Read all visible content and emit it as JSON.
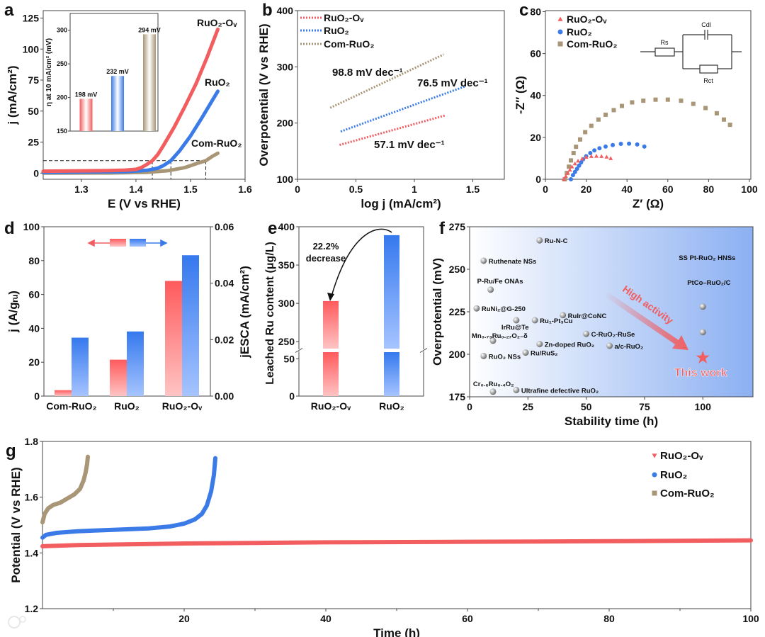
{
  "colors": {
    "red": "#f25d60",
    "blue": "#3b7be8",
    "tan": "#a89677",
    "gray": "#9a9a9a"
  },
  "watermark": "大数跨境",
  "chart_data": [
    {
      "panel": "a",
      "type": "line",
      "xlabel": "E (V vs RHE)",
      "ylabel": "j (mA/cm²)",
      "xlim": [
        1.23,
        1.6
      ],
      "ylim": [
        -5,
        131
      ],
      "xticks": [
        "1.3",
        "1.4",
        "1.5",
        "1.6"
      ],
      "yticks": [
        "0",
        "25",
        "50",
        "75",
        "100",
        "125"
      ],
      "series": [
        {
          "name": "RuO₂-Oᵥ",
          "color": "#f25d60",
          "x": [
            1.23,
            1.3,
            1.35,
            1.38,
            1.4,
            1.41,
            1.42,
            1.43,
            1.44,
            1.45,
            1.47,
            1.49,
            1.51,
            1.53,
            1.55
          ],
          "y": [
            1.5,
            1.8,
            2,
            2.4,
            3,
            4.5,
            7,
            10,
            15,
            22,
            37,
            54,
            72,
            93,
            116
          ]
        },
        {
          "name": "RuO₂",
          "color": "#3b7be8",
          "x": [
            1.23,
            1.3,
            1.38,
            1.42,
            1.44,
            1.45,
            1.464,
            1.48,
            1.5,
            1.52,
            1.55
          ],
          "y": [
            0.5,
            0.8,
            1.2,
            2.2,
            4,
            6,
            10,
            18,
            30,
            44,
            66
          ]
        },
        {
          "name": "Com-RuO₂",
          "color": "#a89677",
          "x": [
            1.23,
            1.35,
            1.42,
            1.46,
            1.49,
            1.51,
            1.528,
            1.54,
            1.55
          ],
          "y": [
            0,
            0.1,
            0.6,
            2,
            4.5,
            7.5,
            10,
            13.5,
            16
          ]
        }
      ],
      "reference": {
        "j": 10,
        "E": [
          1.43,
          1.464,
          1.528
        ]
      },
      "inset": {
        "type": "bar",
        "ylabel": "η at 10 mA/cm² (mV)",
        "ylim": [
          150,
          325
        ],
        "yticks": [
          "150",
          "200",
          "250",
          "300"
        ],
        "categories": [
          "RuO₂-Oᵥ",
          "RuO₂",
          "Com-RuO₂"
        ],
        "values": [
          198,
          232,
          294
        ],
        "labels": [
          "198 mV",
          "232 mV",
          "294 mV"
        ]
      }
    },
    {
      "panel": "b",
      "type": "line",
      "xlabel": "log j (mA/cm²)",
      "ylabel": "Overpotential (V vs RHE)",
      "xlim": [
        0,
        1.77
      ],
      "ylim": [
        100,
        400
      ],
      "xticks": [
        "0",
        "0.5",
        "1",
        "1.5"
      ],
      "yticks": [
        "100",
        "200",
        "300",
        "400"
      ],
      "legend": "top-left",
      "series": [
        {
          "name": "RuO₂-Oᵥ",
          "color": "#f25d60",
          "x": [
            0.36,
            1.27
          ],
          "y": [
            161,
            214
          ],
          "annotation": "57.1 mV dec⁻¹"
        },
        {
          "name": "RuO₂",
          "color": "#3b7be8",
          "x": [
            0.37,
            1.43
          ],
          "y": [
            185,
            265
          ],
          "annotation": "76.5 mV dec⁻¹"
        },
        {
          "name": "Com-RuO₂",
          "color": "#a89677",
          "x": [
            0.28,
            1.25
          ],
          "y": [
            227,
            322
          ],
          "annotation": "98.8 mV dec⁻¹"
        }
      ]
    },
    {
      "panel": "c",
      "type": "scatter",
      "xlabel": "Z′ (Ω)",
      "ylabel": "-Z″ (Ω)",
      "xlim": [
        0,
        100.7
      ],
      "ylim": [
        0,
        80.5
      ],
      "xticks": [
        "0",
        "20",
        "40",
        "60",
        "80",
        "100"
      ],
      "yticks": [
        "0",
        "20",
        "40",
        "60",
        "80"
      ],
      "legend": "top-left",
      "circuit": {
        "rs": "Rs",
        "cdl": "Cdl",
        "rct": "Rct"
      },
      "series": [
        {
          "name": "RuO₂-Oᵥ",
          "marker": "triangle",
          "color": "#f25d60",
          "points": [
            [
              9,
              0
            ],
            [
              10,
              1.5
            ],
            [
              11,
              3
            ],
            [
              12,
              4.5
            ],
            [
              13,
              6
            ],
            [
              14.5,
              7.5
            ],
            [
              16,
              8.8
            ],
            [
              18,
              9.8
            ],
            [
              20,
              10.6
            ],
            [
              22.5,
              11
            ],
            [
              25,
              11.1
            ],
            [
              27.5,
              11
            ],
            [
              30,
              10.7
            ],
            [
              32,
              10
            ]
          ]
        },
        {
          "name": "RuO₂",
          "marker": "circle",
          "color": "#3b7be8",
          "points": [
            [
              12.5,
              0
            ],
            [
              13.5,
              2
            ],
            [
              14.5,
              3.5
            ],
            [
              15.5,
              5
            ],
            [
              16.5,
              6.5
            ],
            [
              17.5,
              8
            ],
            [
              18.5,
              9.5
            ],
            [
              20,
              11
            ],
            [
              22,
              12.5
            ],
            [
              24,
              13.8
            ],
            [
              26.5,
              14.8
            ],
            [
              29.5,
              15.6
            ],
            [
              33,
              16.3
            ],
            [
              37,
              16.9
            ],
            [
              41,
              17
            ],
            [
              45,
              16.6
            ],
            [
              48.5,
              15.6
            ]
          ]
        },
        {
          "name": "Com-RuO₂",
          "marker": "square",
          "color": "#a89677",
          "points": [
            [
              9.5,
              0
            ],
            [
              10.5,
              3
            ],
            [
              11.5,
              6
            ],
            [
              12.5,
              9
            ],
            [
              13.8,
              12.5
            ],
            [
              15,
              15.5
            ],
            [
              17,
              19
            ],
            [
              19.5,
              22.5
            ],
            [
              22.5,
              25.5
            ],
            [
              26,
              28.5
            ],
            [
              29.5,
              30.8
            ],
            [
              33.5,
              33
            ],
            [
              37.5,
              35
            ],
            [
              42.5,
              36.7
            ],
            [
              48,
              37.5
            ],
            [
              54,
              38
            ],
            [
              60,
              38
            ],
            [
              66.5,
              37.5
            ],
            [
              72.5,
              36
            ],
            [
              78.5,
              34
            ],
            [
              84,
              31.5
            ],
            [
              87.5,
              28.5
            ],
            [
              90.5,
              26
            ]
          ]
        }
      ]
    },
    {
      "panel": "d",
      "type": "bar",
      "categories": [
        "Com-RuO₂",
        "RuO₂",
        "RuO₂-Oᵥ"
      ],
      "ylabel": "j (A/gᵣᵤ)",
      "ylabel_right": "jESCA (mA/cm²)",
      "ylim": [
        0,
        100
      ],
      "ylim_right": [
        0,
        0.06
      ],
      "yticks": [
        "0",
        "20",
        "40",
        "60",
        "80",
        "100"
      ],
      "yticks_right": [
        "0.00",
        "0.02",
        "0.04",
        "0.06"
      ],
      "series": [
        {
          "name": "j (A/gRu)",
          "axis": "left",
          "color": "#f25d60",
          "values": [
            3.5,
            21.5,
            68
          ]
        },
        {
          "name": "jESCA (mA/cm²)",
          "axis": "right",
          "color": "#3b7be8",
          "values": [
            0.0207,
            0.0229,
            0.0499
          ]
        }
      ]
    },
    {
      "panel": "e",
      "type": "bar",
      "categories": [
        "RuO₂-Oᵥ",
        "RuO₂"
      ],
      "values": [
        303,
        389
      ],
      "colors": [
        "#f25d60",
        "#3b7be8"
      ],
      "ylabel": "Leached Ru content (μg/L)",
      "yticks": [
        "0",
        "50",
        "250",
        "300",
        "350",
        "400"
      ],
      "axis_break": [
        60,
        240
      ],
      "annotation": [
        "22.2%",
        "decrease"
      ]
    },
    {
      "panel": "f",
      "type": "scatter",
      "xlabel": "Stability time (h)",
      "ylabel": "Overpotential (mV)",
      "xlim": [
        0,
        121.5
      ],
      "ylim": [
        175,
        275
      ],
      "xticks": [
        "0",
        "25",
        "50",
        "75",
        "100"
      ],
      "yticks": [
        "175",
        "200",
        "225",
        "250",
        "275"
      ],
      "annotation": "High activity",
      "points": [
        {
          "label": "Ru-N-C",
          "x": 30,
          "y": 267
        },
        {
          "label": "Ruthenate NSs",
          "x": 6,
          "y": 255
        },
        {
          "label": "P-Ru/Fe ONAs",
          "x": 9,
          "y": 238
        },
        {
          "label": "RuNi₂@G-250",
          "x": 3,
          "y": 227
        },
        {
          "label": "IrRu@Te",
          "x": 20,
          "y": 220
        },
        {
          "label": "Ru₁-Pt₃Cu",
          "x": 28,
          "y": 220
        },
        {
          "label": "RuIr@CoNC",
          "x": 40,
          "y": 223
        },
        {
          "label": "C-RuO₂-RuSe",
          "x": 50,
          "y": 212
        },
        {
          "label": "Mn₀.₇₃Ru₀.₂₇O₂₋δ",
          "x": 10,
          "y": 208
        },
        {
          "label": "Zn-doped RuO₂",
          "x": 30,
          "y": 206
        },
        {
          "label": "a/c-RuO₂",
          "x": 60,
          "y": 205
        },
        {
          "label": "RuO₂ NSs",
          "x": 6,
          "y": 199
        },
        {
          "label": "Ru/RuS₂",
          "x": 24,
          "y": 201
        },
        {
          "label": "Cr₀.₆Ru₀.₄O₂",
          "x": 10,
          "y": 178
        },
        {
          "label": "Ultrafine defective RuO₂",
          "x": 20,
          "y": 179
        },
        {
          "label": "SS Pt-RuO₂ HNSs",
          "x": 100,
          "y": 228
        },
        {
          "label": "PtCo–RuO₂/C",
          "x": 100,
          "y": 213
        }
      ],
      "highlight": {
        "label": "This work",
        "x": 100,
        "y": 198,
        "color": "#f25d60"
      }
    },
    {
      "panel": "g",
      "type": "line",
      "xlabel": "Time (h)",
      "ylabel": "Potential (V vs RHE)",
      "xlim": [
        0,
        100
      ],
      "ylim": [
        1.2,
        1.8
      ],
      "xticks": [
        "20",
        "40",
        "60",
        "80",
        "100"
      ],
      "yticks": [
        "1.2",
        "1.4",
        "1.6",
        "1.8"
      ],
      "legend": "top-right",
      "series": [
        {
          "name": "RuO₂-Oᵥ",
          "marker": "triangle-down",
          "color": "#f25d60",
          "x": [
            0,
            5,
            10,
            20,
            30,
            40,
            60,
            80,
            100
          ],
          "y": [
            1.424,
            1.428,
            1.43,
            1.434,
            1.436,
            1.438,
            1.44,
            1.442,
            1.445
          ]
        },
        {
          "name": "RuO₂",
          "marker": "circle",
          "color": "#3b7be8",
          "x": [
            0,
            0.5,
            2,
            5,
            10,
            15,
            18,
            20,
            21.5,
            22.5,
            23.2,
            23.8,
            24.2,
            24.4
          ],
          "y": [
            1.455,
            1.465,
            1.472,
            1.478,
            1.483,
            1.488,
            1.495,
            1.505,
            1.52,
            1.54,
            1.57,
            1.62,
            1.68,
            1.74
          ]
        },
        {
          "name": "Com-RuO₂",
          "marker": "square",
          "color": "#a89677",
          "x": [
            0,
            0.3,
            0.8,
            1.5,
            2.5,
            3.5,
            4.5,
            5.3,
            5.8,
            6.1,
            6.3,
            6.4
          ],
          "y": [
            1.51,
            1.54,
            1.56,
            1.572,
            1.58,
            1.595,
            1.61,
            1.63,
            1.66,
            1.69,
            1.72,
            1.745
          ]
        }
      ]
    }
  ]
}
